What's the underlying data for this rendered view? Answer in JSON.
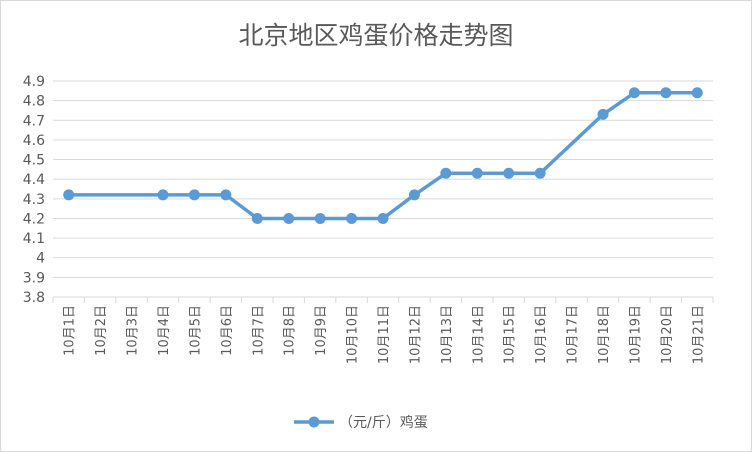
{
  "chart_data": {
    "type": "line",
    "title": "北京地区鸡蛋价格走势图",
    "xlabel": "",
    "ylabel": "",
    "categories": [
      "10月1日",
      "10月2日",
      "10月3日",
      "10月4日",
      "10月5日",
      "10月6日",
      "10月7日",
      "10月8日",
      "10月9日",
      "10月10日",
      "10月11日",
      "10月12日",
      "10月13日",
      "10月14日",
      "10月15日",
      "10月16日",
      "10月17日",
      "10月18日",
      "10月19日",
      "10月20日",
      "10月21日"
    ],
    "series": [
      {
        "name": "（元/斤）鸡蛋",
        "values": [
          4.32,
          null,
          null,
          4.32,
          4.32,
          4.32,
          4.2,
          4.2,
          4.2,
          4.2,
          4.2,
          4.32,
          4.43,
          4.43,
          4.43,
          4.43,
          null,
          4.73,
          4.84,
          4.84,
          4.84
        ]
      }
    ],
    "ylim": [
      3.8,
      4.9
    ],
    "yticks": [
      "3.8",
      "3.9",
      "4",
      "4.1",
      "4.2",
      "4.3",
      "4.4",
      "4.5",
      "4.6",
      "4.7",
      "4.8",
      "4.9"
    ],
    "grid": true,
    "legend_position": "bottom",
    "line_color": "#5b9bd5"
  }
}
